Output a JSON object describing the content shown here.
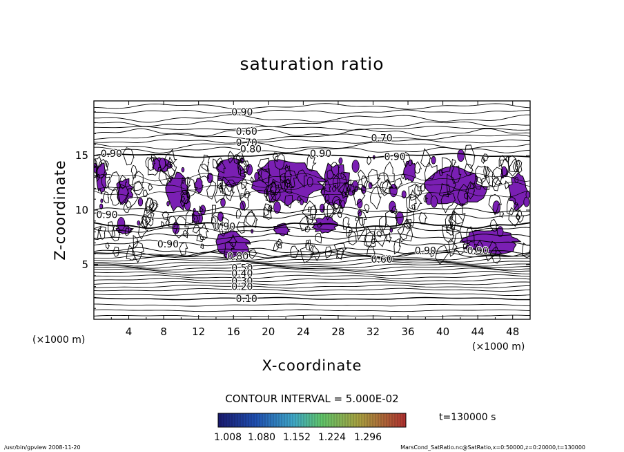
{
  "chart_data": {
    "type": "contour",
    "title": "saturation ratio",
    "xlabel": "X-coordinate",
    "ylabel": "Z-coordinate",
    "x_unit": "(×1000 m)",
    "y_unit": "(×1000 m)",
    "xlim": [
      0,
      50
    ],
    "ylim": [
      0,
      20
    ],
    "x_ticks": [
      "4",
      "8",
      "12",
      "16",
      "20",
      "24",
      "28",
      "32",
      "36",
      "40",
      "44",
      "48"
    ],
    "y_ticks": [
      "5",
      "10",
      "15"
    ],
    "contour_interval_label": "CONTOUR INTERVAL = 5.000E-02",
    "time_label": "t=130000 s",
    "colorbar_ticks": [
      "1.008",
      "1.080",
      "1.152",
      "1.224",
      "1.296"
    ],
    "supersaturated_color": "#7a1fb3",
    "contour_labels": [
      {
        "text": "0.90",
        "x": 17.0,
        "z": 19.0
      },
      {
        "text": "0.60",
        "x": 17.5,
        "z": 17.2
      },
      {
        "text": "0.70",
        "x": 17.5,
        "z": 16.2
      },
      {
        "text": "0.70",
        "x": 33.0,
        "z": 16.6
      },
      {
        "text": "0.80",
        "x": 18.0,
        "z": 15.6
      },
      {
        "text": "0.90",
        "x": 2.0,
        "z": 15.2
      },
      {
        "text": "0.90",
        "x": 26.0,
        "z": 15.2
      },
      {
        "text": "0.90",
        "x": 34.5,
        "z": 14.9
      },
      {
        "text": "0.90",
        "x": 1.5,
        "z": 9.6
      },
      {
        "text": "0.90",
        "x": 15.0,
        "z": 8.5
      },
      {
        "text": "0.90",
        "x": 8.5,
        "z": 6.9
      },
      {
        "text": "0.90",
        "x": 38.0,
        "z": 6.3
      },
      {
        "text": "0.90",
        "x": 44.0,
        "z": 6.3
      },
      {
        "text": "0.60",
        "x": 33.0,
        "z": 5.5
      },
      {
        "text": "0.80",
        "x": 16.5,
        "z": 5.8
      },
      {
        "text": "0.50",
        "x": 17.0,
        "z": 4.7
      },
      {
        "text": "0.40",
        "x": 17.0,
        "z": 4.2
      },
      {
        "text": "0.30",
        "x": 17.0,
        "z": 3.5
      },
      {
        "text": "0.20",
        "x": 17.0,
        "z": 3.0
      },
      {
        "text": "0.10",
        "x": 17.5,
        "z": 1.9
      }
    ],
    "footer_left": "/usr/bin/gpview   2008-11-20",
    "footer_right": "MarsCond_SatRatio.nc@SatRatio,x=0:50000,z=0:20000,t=130000"
  }
}
